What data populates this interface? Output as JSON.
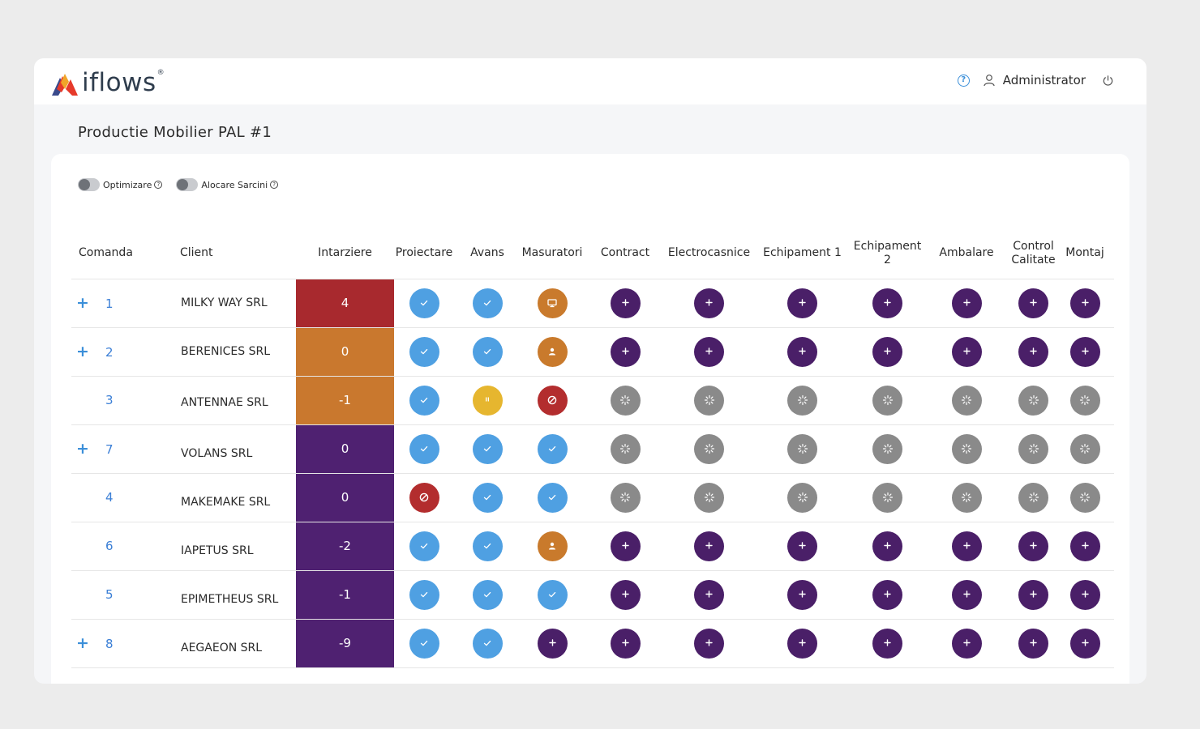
{
  "brand": {
    "logo_text": "iflows",
    "logo_reg": "®",
    "colors": [
      "#e63a2a",
      "#f0a52a",
      "#3a4a8c"
    ]
  },
  "header": {
    "user_label": "Administrator",
    "help_icon": "question-circle-icon",
    "user_icon": "user-icon",
    "power_icon": "power-icon"
  },
  "page": {
    "title": "Productie Mobilier PAL #1"
  },
  "toggles": [
    {
      "label": "Optimizare",
      "on": false
    },
    {
      "label": "Alocare Sarcini",
      "on": false
    }
  ],
  "table": {
    "columns": [
      "Comanda",
      "Client",
      "Intarziere",
      "Proiectare",
      "Avans",
      "Masuratori",
      "Contract",
      "Electrocasnice",
      "Echipament 1",
      "Echipament 2",
      "Ambalare",
      "Control Calitate",
      "Montaj"
    ],
    "status_colors": {
      "check": "#4fa0e2",
      "plus": "#4a1f68",
      "spin": "#8a8a8a",
      "block": "#b32d2e",
      "pause": "#e6b62f",
      "monitor": "#c97a2c",
      "person": "#c97a2c"
    },
    "delay_colors": {
      "red": "#a8292e",
      "orange": "#c9782e",
      "purple": "#4f2171"
    },
    "rows": [
      {
        "expand": true,
        "id": "1",
        "client": "MILKY WAY SRL",
        "delay": "4",
        "delay_color": "red",
        "statuses": [
          "check",
          "check",
          "monitor",
          "plus",
          "plus",
          "plus",
          "plus",
          "plus",
          "plus",
          "plus"
        ]
      },
      {
        "expand": true,
        "id": "2",
        "client": "BERENICES SRL",
        "delay": "0",
        "delay_color": "orange",
        "statuses": [
          "check",
          "check",
          "person",
          "plus",
          "plus",
          "plus",
          "plus",
          "plus",
          "plus",
          "plus"
        ]
      },
      {
        "expand": false,
        "id": "3",
        "client": "ANTENNAE SRL",
        "delay": "-1",
        "delay_color": "orange",
        "statuses": [
          "check",
          "pause",
          "block",
          "spin",
          "spin",
          "spin",
          "spin",
          "spin",
          "spin",
          "spin"
        ]
      },
      {
        "expand": true,
        "id": "7",
        "client": "VOLANS SRL",
        "delay": "0",
        "delay_color": "purple",
        "statuses": [
          "check",
          "check",
          "check",
          "spin",
          "spin",
          "spin",
          "spin",
          "spin",
          "spin",
          "spin"
        ]
      },
      {
        "expand": false,
        "id": "4",
        "client": "MAKEMAKE SRL",
        "delay": "0",
        "delay_color": "purple",
        "statuses": [
          "block",
          "check",
          "check",
          "spin",
          "spin",
          "spin",
          "spin",
          "spin",
          "spin",
          "spin"
        ]
      },
      {
        "expand": false,
        "id": "6",
        "client": "IAPETUS SRL",
        "delay": "-2",
        "delay_color": "purple",
        "statuses": [
          "check",
          "check",
          "person",
          "plus",
          "plus",
          "plus",
          "plus",
          "plus",
          "plus",
          "plus"
        ]
      },
      {
        "expand": false,
        "id": "5",
        "client": "EPIMETHEUS SRL",
        "delay": "-1",
        "delay_color": "purple",
        "statuses": [
          "check",
          "check",
          "check",
          "plus",
          "plus",
          "plus",
          "plus",
          "plus",
          "plus",
          "plus"
        ]
      },
      {
        "expand": true,
        "id": "8",
        "client": "AEGAEON SRL",
        "delay": "-9",
        "delay_color": "purple",
        "statuses": [
          "check",
          "check",
          "plus",
          "plus",
          "plus",
          "plus",
          "plus",
          "plus",
          "plus",
          "plus"
        ]
      }
    ]
  }
}
